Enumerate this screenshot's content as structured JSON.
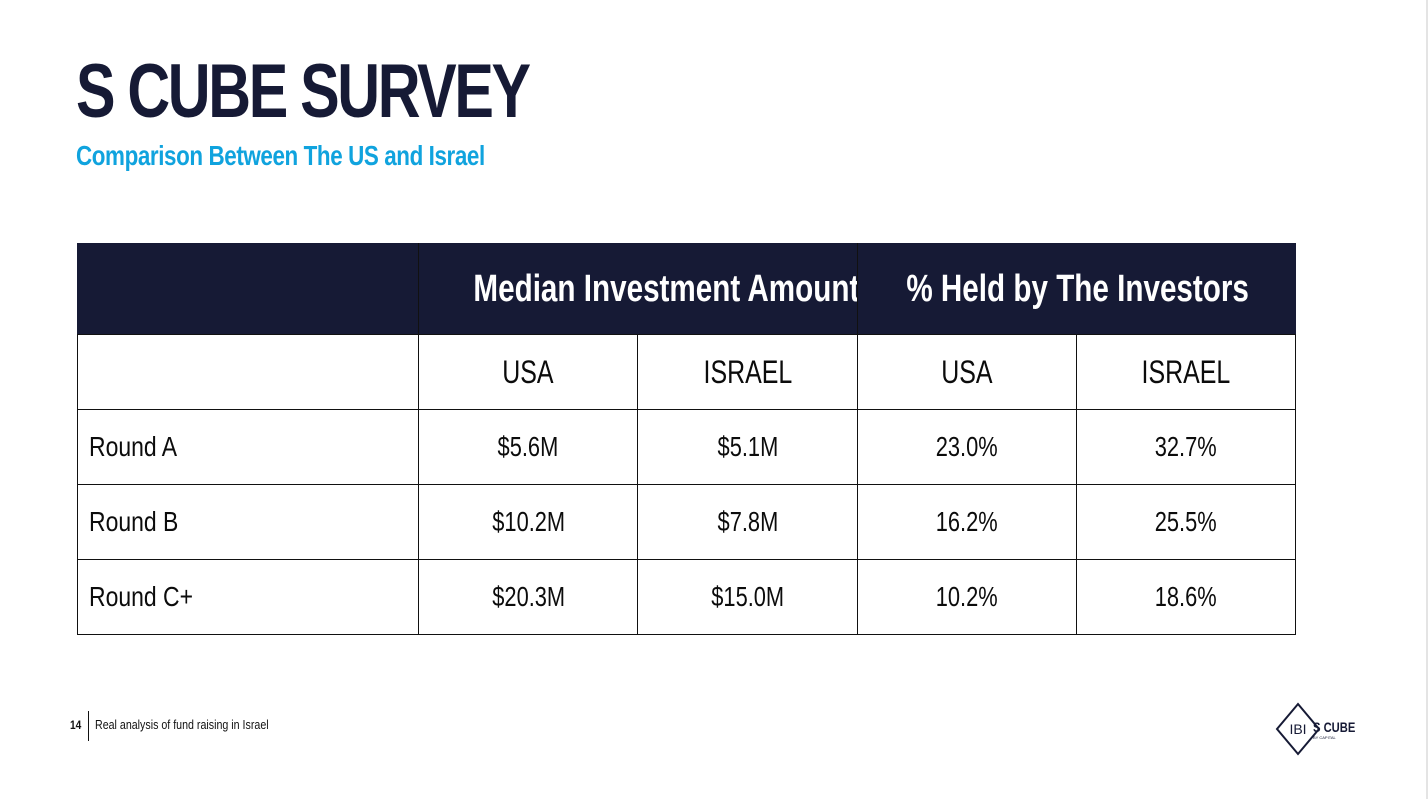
{
  "header": {
    "title": "S CUBE SURVEY",
    "subtitle": "Comparison Between The US and Israel"
  },
  "table": {
    "group_headers": [
      "",
      "Median Investment Amount",
      "% Held by The Investors"
    ],
    "sub_headers": [
      "",
      "USA",
      "ISRAEL",
      "USA",
      "ISRAEL"
    ],
    "rows": [
      {
        "label": "Round A",
        "values": [
          "$5.6M",
          "$5.1M",
          "23.0%",
          "32.7%"
        ]
      },
      {
        "label": "Round B",
        "values": [
          "$10.2M",
          "$7.8M",
          "16.2%",
          "25.5%"
        ]
      },
      {
        "label": "Round C+",
        "values": [
          "$20.3M",
          "$15.0M",
          "10.2%",
          "18.6%"
        ]
      }
    ],
    "header_color": "#161a35"
  },
  "footer": {
    "page_number": "14",
    "caption": "Real analysis of fund raising in Israel"
  },
  "logo": {
    "mark": "IBI",
    "name": "S CUBE",
    "tagline": "BY CAPITAL"
  },
  "colors": {
    "navy": "#161a35",
    "accent": "#10a3de"
  }
}
